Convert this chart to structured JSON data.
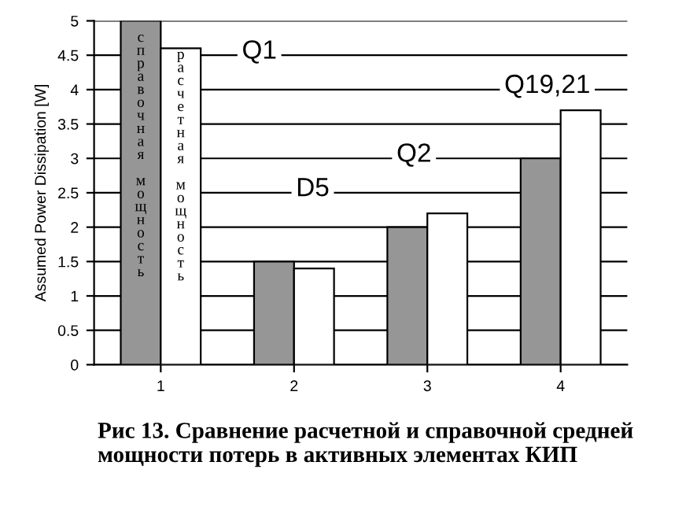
{
  "chart_data": {
    "type": "bar",
    "ylabel": "Assumed Power Dissipation [W]",
    "categories": [
      "1",
      "2",
      "3",
      "4"
    ],
    "series": [
      {
        "name": "справочная мощность",
        "color": "#969696",
        "values": [
          5.0,
          1.5,
          2.0,
          3.0
        ]
      },
      {
        "name": "расчетная мощность",
        "color": "#ffffff",
        "values": [
          4.6,
          1.4,
          2.2,
          3.7
        ]
      }
    ],
    "ylim": [
      0,
      5
    ],
    "yticks": [
      0,
      0.5,
      1,
      1.5,
      2,
      2.5,
      3,
      3.5,
      4,
      4.5,
      5
    ],
    "grid": "y",
    "annotations": [
      "Q1",
      "Q19,21",
      "Q2",
      "D5",
      "Рис 13. Сравнение расчетной и справочной средней мощности потерь в активных элементах КИП"
    ]
  }
}
